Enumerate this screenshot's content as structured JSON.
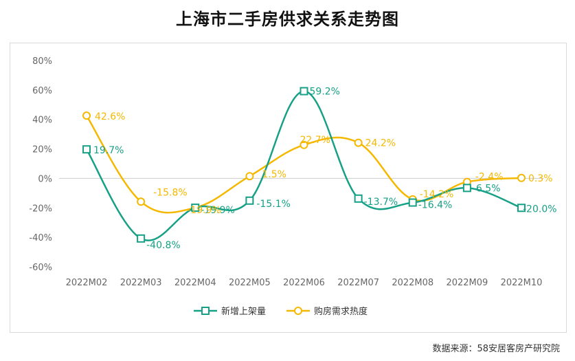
{
  "title": "上海市二手房供求关系走势图",
  "source": "数据来源：58安居客房产研究院",
  "colors": {
    "listing": "#16a085",
    "demand": "#f5b800",
    "axis": "#666666",
    "grid": "#cccccc"
  },
  "chart_data": {
    "type": "line",
    "title": "上海市二手房供求关系走势图",
    "categories": [
      "2022M02",
      "2022M03",
      "2022M04",
      "2022M05",
      "2022M06",
      "2022M07",
      "2022M08",
      "2022M09",
      "2022M10"
    ],
    "yticks": [
      "80%",
      "60%",
      "40%",
      "20%",
      "0%",
      "-20%",
      "-40%",
      "-60%"
    ],
    "ylim": [
      -60,
      80
    ],
    "legend_position": "bottom",
    "series": [
      {
        "name": "新增上架量",
        "marker": "square",
        "values": [
          19.7,
          -40.8,
          -19.9,
          -15.1,
          59.2,
          -13.7,
          -16.4,
          -6.5,
          -20.0
        ],
        "labels": [
          "19.7%",
          "-40.8%",
          "-19.9%",
          "-15.1%",
          "59.2%",
          "-13.7%",
          "-16.4%",
          "-6.5%",
          "-20.0%"
        ]
      },
      {
        "name": "购房需求热度",
        "marker": "circle",
        "values": [
          42.6,
          -15.8,
          -19.9,
          1.5,
          22.7,
          24.2,
          -14.2,
          -2.4,
          0.3
        ],
        "labels": [
          "42.6%",
          "-15.8%",
          "-19.9%",
          "1.5%",
          "22.7%",
          "24.2%",
          "-14.2%",
          "-2.4%",
          "0.3%"
        ]
      }
    ]
  }
}
